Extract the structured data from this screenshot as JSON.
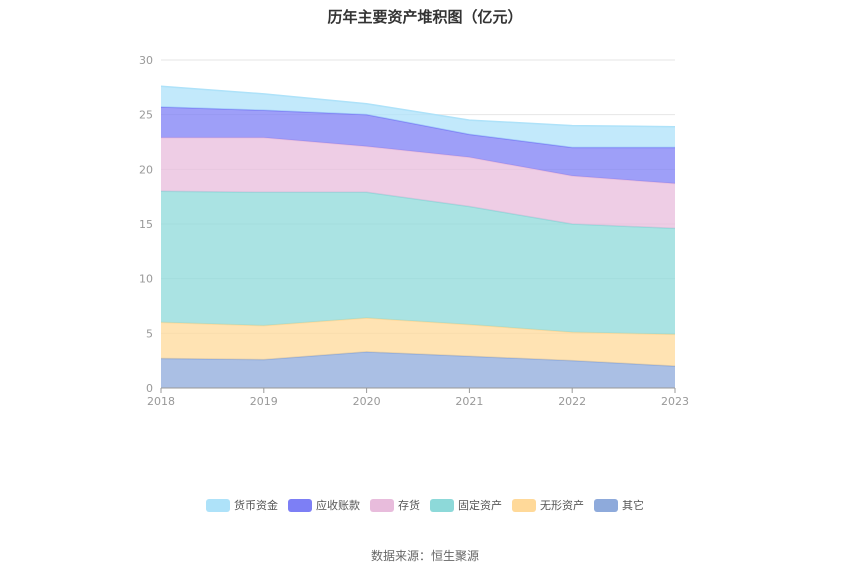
{
  "title": "历年主要资产堆积图（亿元）",
  "source": "数据来源：恒生聚源",
  "chart_data": {
    "type": "area",
    "stacked": true,
    "x": [
      "2018",
      "2019",
      "2020",
      "2021",
      "2022",
      "2023"
    ],
    "ylim": [
      0,
      30
    ],
    "yticks": [
      "0",
      "5",
      "10",
      "15",
      "20",
      "25",
      "30"
    ],
    "grid": true,
    "legend_position": "bottom",
    "series": [
      {
        "name": "其它",
        "color": "#8eaadb",
        "values": [
          2.7,
          2.6,
          3.3,
          2.9,
          2.5,
          2.0
        ]
      },
      {
        "name": "无形资产",
        "color": "#ffd999",
        "values": [
          3.3,
          3.1,
          3.1,
          2.9,
          2.6,
          2.9
        ]
      },
      {
        "name": "固定资产",
        "color": "#8dd9d9",
        "values": [
          12.0,
          12.2,
          11.5,
          10.8,
          9.9,
          9.7
        ]
      },
      {
        "name": "存货",
        "color": "#e8bcdc",
        "values": [
          4.9,
          5.0,
          4.2,
          4.5,
          4.4,
          4.1
        ]
      },
      {
        "name": "应收账款",
        "color": "#7d7ff5",
        "values": [
          2.8,
          2.5,
          2.9,
          2.1,
          2.6,
          3.3
        ]
      },
      {
        "name": "货币资金",
        "color": "#aee2f9",
        "values": [
          1.9,
          1.5,
          1.0,
          1.3,
          2.0,
          1.9
        ]
      }
    ],
    "legend_order": [
      "货币资金",
      "应收账款",
      "存货",
      "固定资产",
      "无形资产",
      "其它"
    ]
  }
}
